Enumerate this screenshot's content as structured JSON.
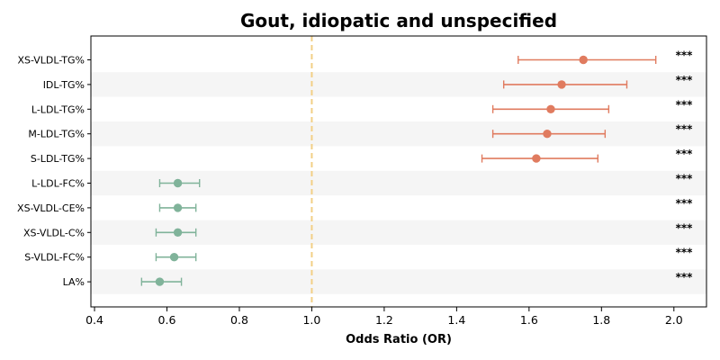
{
  "chart_data": {
    "type": "forest",
    "title": "Gout, idiopatic and unspecified",
    "xlabel": "Odds Ratio (OR)",
    "xlim": [
      0.39,
      2.09
    ],
    "xticks": [
      0.4,
      0.6,
      0.8,
      1.0,
      1.2,
      1.4,
      1.6,
      1.8,
      2.0
    ],
    "xtick_labels": [
      "0.4",
      "0.6",
      "0.8",
      "1.0",
      "1.2",
      "1.4",
      "1.6",
      "1.8",
      "2.0"
    ],
    "reference_line": 1.0,
    "colors": {
      "positive": "#E07B5F",
      "negative": "#80B39A",
      "reference": "#F2CF85",
      "band": "#F5F5F5"
    },
    "rows": [
      {
        "label": "XS-VLDL-TG%",
        "or": 1.75,
        "lower": 1.57,
        "upper": 1.95,
        "sig": "***",
        "group": "positive"
      },
      {
        "label": "IDL-TG%",
        "or": 1.69,
        "lower": 1.53,
        "upper": 1.87,
        "sig": "***",
        "group": "positive"
      },
      {
        "label": "L-LDL-TG%",
        "or": 1.66,
        "lower": 1.5,
        "upper": 1.82,
        "sig": "***",
        "group": "positive"
      },
      {
        "label": "M-LDL-TG%",
        "or": 1.65,
        "lower": 1.5,
        "upper": 1.81,
        "sig": "***",
        "group": "positive"
      },
      {
        "label": "S-LDL-TG%",
        "or": 1.62,
        "lower": 1.47,
        "upper": 1.79,
        "sig": "***",
        "group": "positive"
      },
      {
        "label": "L-LDL-FC%",
        "or": 0.63,
        "lower": 0.58,
        "upper": 0.69,
        "sig": "***",
        "group": "negative"
      },
      {
        "label": "XS-VLDL-CE%",
        "or": 0.63,
        "lower": 0.58,
        "upper": 0.68,
        "sig": "***",
        "group": "negative"
      },
      {
        "label": "XS-VLDL-C%",
        "or": 0.63,
        "lower": 0.57,
        "upper": 0.68,
        "sig": "***",
        "group": "negative"
      },
      {
        "label": "S-VLDL-FC%",
        "or": 0.62,
        "lower": 0.57,
        "upper": 0.68,
        "sig": "***",
        "group": "negative"
      },
      {
        "label": "LA%",
        "or": 0.58,
        "lower": 0.53,
        "upper": 0.64,
        "sig": "***",
        "group": "negative"
      }
    ]
  }
}
